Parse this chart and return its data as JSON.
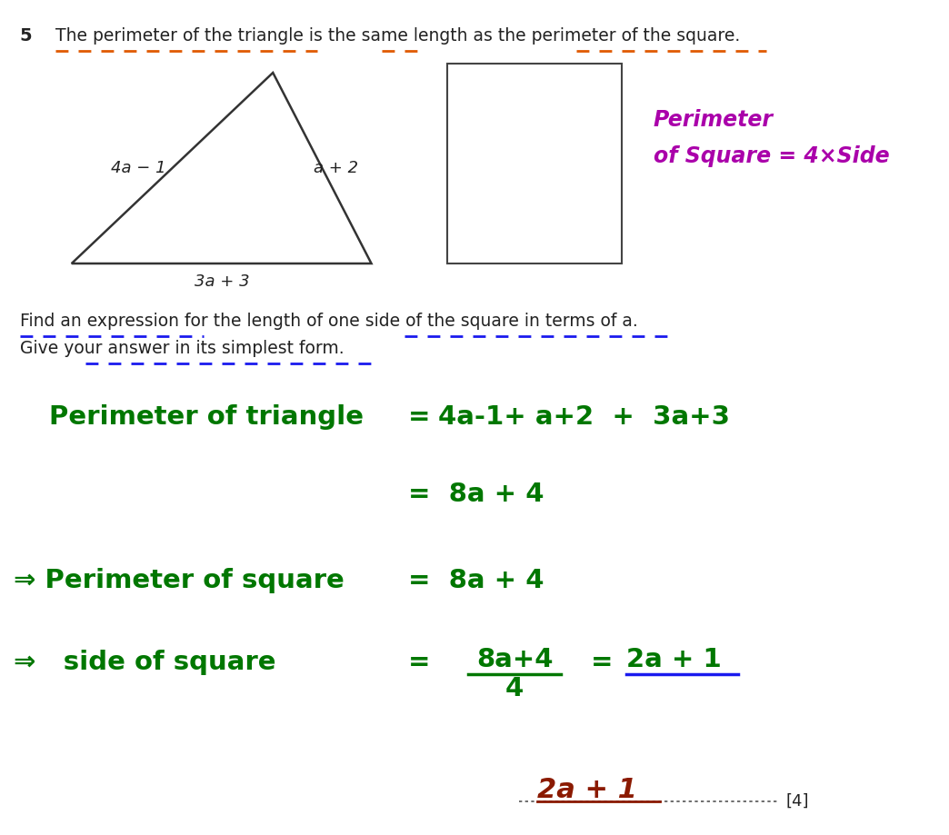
{
  "bg_color": "#ffffff",
  "title_num": "5",
  "title_text": "The perimeter of the triangle is the same length as the perimeter of the square.",
  "orange_color": "#e05a00",
  "blue_color": "#1a1aee",
  "text_color": "#222222",
  "perimeter_color": "#aa00aa",
  "answer_color": "#007700",
  "final_color": "#8b1a00",
  "triangle_label_left": "4a − 1",
  "triangle_label_right": "a + 2",
  "triangle_label_bottom": "3a + 3",
  "perimeter_note_line1": "Perimeter",
  "perimeter_note_line2": "of Square = 4×Side",
  "question_line1": "Find an expression for the length of one side of the square in terms of a.",
  "question_line2": "Give your answer in its simplest form.",
  "marks": "[4]"
}
